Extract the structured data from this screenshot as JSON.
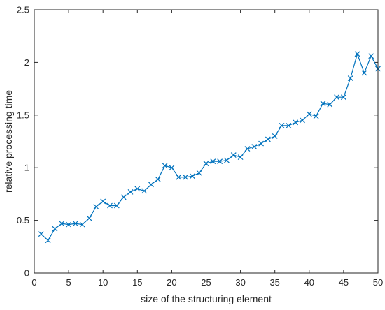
{
  "chart_data": {
    "type": "line",
    "title": "",
    "xlabel": "size of the structuring element",
    "ylabel": "relative processing time",
    "xlim": [
      0,
      50
    ],
    "ylim": [
      0,
      2.5
    ],
    "xticks": [
      0,
      5,
      10,
      15,
      20,
      25,
      30,
      35,
      40,
      45,
      50
    ],
    "yticks": [
      0,
      0.5,
      1,
      1.5,
      2,
      2.5
    ],
    "xtick_labels": [
      "0",
      "5",
      "10",
      "15",
      "20",
      "25",
      "30",
      "35",
      "40",
      "45",
      "50"
    ],
    "ytick_labels": [
      "0",
      "0.5",
      "1",
      "1.5",
      "2",
      "2.5"
    ],
    "grid": false,
    "marker": "x",
    "color": "#0072BD",
    "series": [
      {
        "x": [
          1,
          2,
          3,
          4,
          5,
          6,
          7,
          8,
          9,
          10,
          11,
          12,
          13,
          14,
          15,
          16,
          17,
          18,
          19,
          20,
          21,
          22,
          23,
          24,
          25,
          26,
          27,
          28,
          29,
          30,
          31,
          32,
          33,
          34,
          35,
          36,
          37,
          38,
          39,
          40,
          41,
          42,
          43,
          44,
          45,
          46,
          47,
          48,
          49,
          50
        ],
        "y": [
          0.37,
          0.31,
          0.42,
          0.47,
          0.46,
          0.47,
          0.46,
          0.52,
          0.63,
          0.68,
          0.64,
          0.64,
          0.72,
          0.77,
          0.8,
          0.78,
          0.84,
          0.89,
          1.02,
          1.0,
          0.91,
          0.91,
          0.92,
          0.95,
          1.04,
          1.06,
          1.06,
          1.07,
          1.12,
          1.1,
          1.18,
          1.2,
          1.23,
          1.27,
          1.3,
          1.4,
          1.4,
          1.43,
          1.45,
          1.51,
          1.49,
          1.61,
          1.6,
          1.67,
          1.67,
          1.85,
          2.08,
          1.9,
          2.06,
          1.94
        ]
      }
    ]
  }
}
